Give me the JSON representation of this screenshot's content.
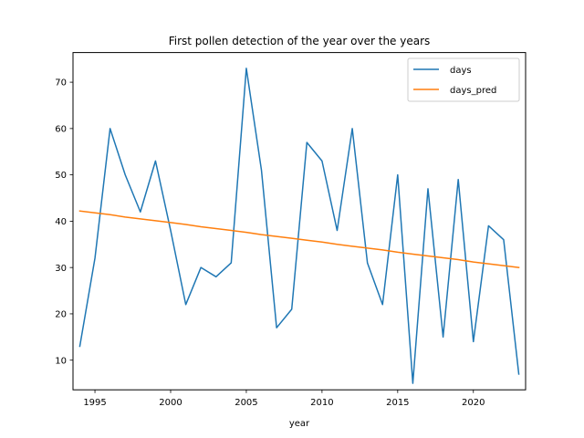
{
  "chart_data": {
    "type": "line",
    "title": "First pollen detection of the year over the years",
    "xlabel": "year",
    "ylabel": "",
    "xlim": [
      1993.55,
      2023.45
    ],
    "ylim": [
      3.6,
      76.4
    ],
    "xticks": [
      1995,
      2000,
      2005,
      2010,
      2015,
      2020
    ],
    "yticks": [
      10,
      20,
      30,
      40,
      50,
      60,
      70
    ],
    "grid": false,
    "legend_position": "top-right",
    "x": [
      1994,
      1995,
      1996,
      1997,
      1998,
      1999,
      2000,
      2001,
      2002,
      2003,
      2004,
      2005,
      2006,
      2007,
      2008,
      2009,
      2010,
      2011,
      2012,
      2013,
      2014,
      2015,
      2016,
      2017,
      2018,
      2019,
      2020,
      2021,
      2022,
      2023
    ],
    "series": [
      {
        "name": "days",
        "color": "#1f77b4",
        "values": [
          13,
          32,
          60,
          50,
          42,
          53,
          38,
          22,
          30,
          28,
          31,
          73,
          51,
          17,
          21,
          57,
          53,
          38,
          60,
          31,
          22,
          50,
          5,
          47,
          15,
          49,
          14,
          39,
          36,
          7
        ]
      },
      {
        "name": "days_pred",
        "color": "#ff7f0e",
        "values": [
          42.2,
          41.8,
          41.4,
          40.9,
          40.5,
          40.1,
          39.7,
          39.3,
          38.8,
          38.4,
          38.0,
          37.6,
          37.1,
          36.7,
          36.3,
          35.9,
          35.5,
          35.0,
          34.6,
          34.2,
          33.8,
          33.3,
          32.9,
          32.5,
          32.1,
          31.7,
          31.2,
          30.8,
          30.4,
          30.0
        ]
      }
    ]
  }
}
